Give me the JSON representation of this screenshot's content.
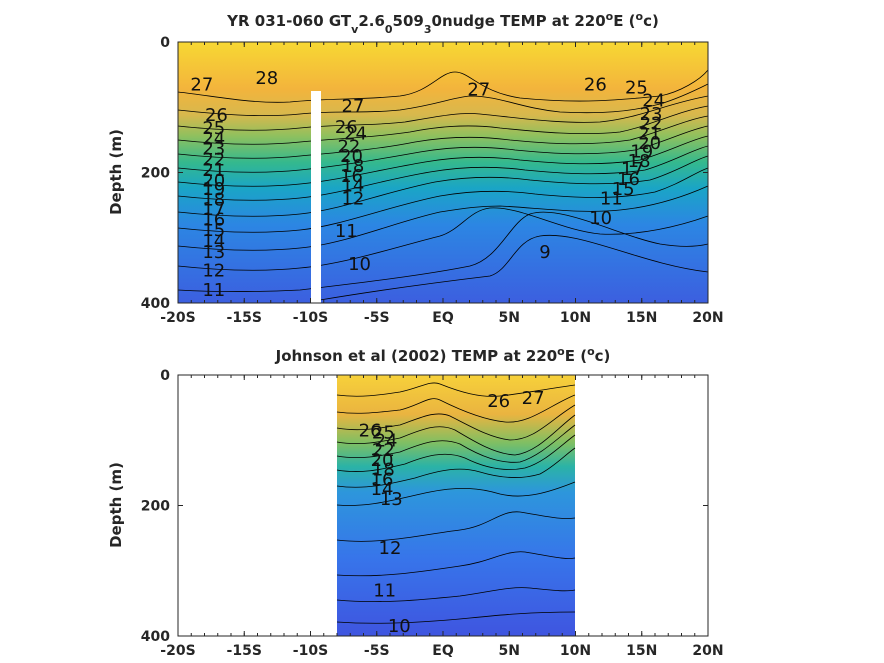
{
  "chart_data": [
    {
      "type": "heatmap",
      "title_parts": [
        "YR 031-060 GT",
        "v",
        "2.6",
        "0",
        "509",
        "3",
        "0nudge TEMP at 220",
        "o",
        "E (",
        "o",
        "c)"
      ],
      "ylabel": "Depth (m)",
      "xlim": [
        -20,
        20
      ],
      "ylim": [
        0,
        400
      ],
      "x_ticks": [
        -20,
        -15,
        -10,
        -5,
        0,
        5,
        10,
        15,
        20
      ],
      "x_tick_labels": [
        "-20S",
        "-15S",
        "-10S",
        "-5S",
        "EQ",
        "5N",
        "10N",
        "15N",
        "20N"
      ],
      "y_ticks": [
        0,
        200,
        400
      ],
      "y_tick_labels": [
        "0",
        "200",
        "400"
      ],
      "data_extent": [
        -20,
        20
      ],
      "gap": {
        "x_from": -10.2,
        "x_to": -9.5,
        "depth_from": 75,
        "depth_to": 400
      },
      "contour_labels": [
        {
          "text": "28",
          "x": -13.3,
          "y": 55
        },
        {
          "text": "27",
          "x": -18.2,
          "y": 65
        },
        {
          "text": "26",
          "x": -17.1,
          "y": 112
        },
        {
          "text": "25",
          "x": -17.3,
          "y": 132
        },
        {
          "text": "24",
          "x": -17.3,
          "y": 148
        },
        {
          "text": "23",
          "x": -17.3,
          "y": 163
        },
        {
          "text": "22",
          "x": -17.3,
          "y": 180
        },
        {
          "text": "21",
          "x": -17.3,
          "y": 196
        },
        {
          "text": "20",
          "x": -17.3,
          "y": 212
        },
        {
          "text": "19",
          "x": -17.3,
          "y": 225
        },
        {
          "text": "18",
          "x": -17.3,
          "y": 241
        },
        {
          "text": "17",
          "x": -17.3,
          "y": 256
        },
        {
          "text": "16",
          "x": -17.3,
          "y": 272
        },
        {
          "text": "15",
          "x": -17.3,
          "y": 288
        },
        {
          "text": "14",
          "x": -17.3,
          "y": 305
        },
        {
          "text": "13",
          "x": -17.3,
          "y": 322
        },
        {
          "text": "12",
          "x": -17.3,
          "y": 350
        },
        {
          "text": "11",
          "x": -17.3,
          "y": 380
        },
        {
          "text": "27",
          "x": -6.8,
          "y": 98
        },
        {
          "text": "26",
          "x": -7.3,
          "y": 130
        },
        {
          "text": "24",
          "x": -6.6,
          "y": 140
        },
        {
          "text": "22",
          "x": -7.1,
          "y": 160
        },
        {
          "text": "20",
          "x": -6.9,
          "y": 175
        },
        {
          "text": "18",
          "x": -6.8,
          "y": 190
        },
        {
          "text": "16",
          "x": -6.9,
          "y": 205
        },
        {
          "text": "14",
          "x": -6.8,
          "y": 220
        },
        {
          "text": "12",
          "x": -6.8,
          "y": 240
        },
        {
          "text": "11",
          "x": -7.3,
          "y": 290
        },
        {
          "text": "10",
          "x": -6.3,
          "y": 340
        },
        {
          "text": "27",
          "x": 2.7,
          "y": 73
        },
        {
          "text": "26",
          "x": 11.5,
          "y": 65
        },
        {
          "text": "25",
          "x": 14.6,
          "y": 70
        },
        {
          "text": "24",
          "x": 15.9,
          "y": 90
        },
        {
          "text": "23",
          "x": 15.7,
          "y": 110
        },
        {
          "text": "22",
          "x": 15.7,
          "y": 125
        },
        {
          "text": "21",
          "x": 15.6,
          "y": 140
        },
        {
          "text": "20",
          "x": 15.6,
          "y": 155
        },
        {
          "text": "19",
          "x": 15.0,
          "y": 168
        },
        {
          "text": "18",
          "x": 14.8,
          "y": 182
        },
        {
          "text": "17",
          "x": 14.3,
          "y": 195
        },
        {
          "text": "16",
          "x": 14.0,
          "y": 210
        },
        {
          "text": "15",
          "x": 13.6,
          "y": 225
        },
        {
          "text": "11",
          "x": 12.7,
          "y": 240
        },
        {
          "text": "10",
          "x": 11.9,
          "y": 270
        },
        {
          "text": "9",
          "x": 7.7,
          "y": 322
        }
      ]
    },
    {
      "type": "heatmap",
      "title_parts": [
        "Johnson et al (2002) TEMP at 220",
        "o",
        "E (",
        "o",
        "c)"
      ],
      "ylabel": "Depth (m)",
      "xlim": [
        -20,
        20
      ],
      "ylim": [
        0,
        400
      ],
      "x_ticks": [
        -20,
        -15,
        -10,
        -5,
        0,
        5,
        10,
        15,
        20
      ],
      "x_tick_labels": [
        "-20S",
        "-15S",
        "-10S",
        "-5S",
        "EQ",
        "5N",
        "10N",
        "15N",
        "20N"
      ],
      "y_ticks": [
        0,
        200,
        400
      ],
      "y_tick_labels": [
        "0",
        "200",
        "400"
      ],
      "data_extent": [
        -8.2,
        10
      ],
      "contour_labels": [
        {
          "text": "26",
          "x": 4.2,
          "y": 40
        },
        {
          "text": "27",
          "x": 6.8,
          "y": 35
        },
        {
          "text": "26",
          "x": -5.5,
          "y": 85
        },
        {
          "text": "25",
          "x": -4.5,
          "y": 88
        },
        {
          "text": "24",
          "x": -4.3,
          "y": 100
        },
        {
          "text": "22",
          "x": -4.5,
          "y": 115
        },
        {
          "text": "20",
          "x": -4.6,
          "y": 130
        },
        {
          "text": "18",
          "x": -4.5,
          "y": 145
        },
        {
          "text": "16",
          "x": -4.6,
          "y": 160
        },
        {
          "text": "14",
          "x": -4.6,
          "y": 175
        },
        {
          "text": "13",
          "x": -3.9,
          "y": 190
        },
        {
          "text": "12",
          "x": -4.0,
          "y": 265
        },
        {
          "text": "11",
          "x": -4.4,
          "y": 330
        },
        {
          "text": "10",
          "x": -3.3,
          "y": 385
        }
      ]
    }
  ]
}
